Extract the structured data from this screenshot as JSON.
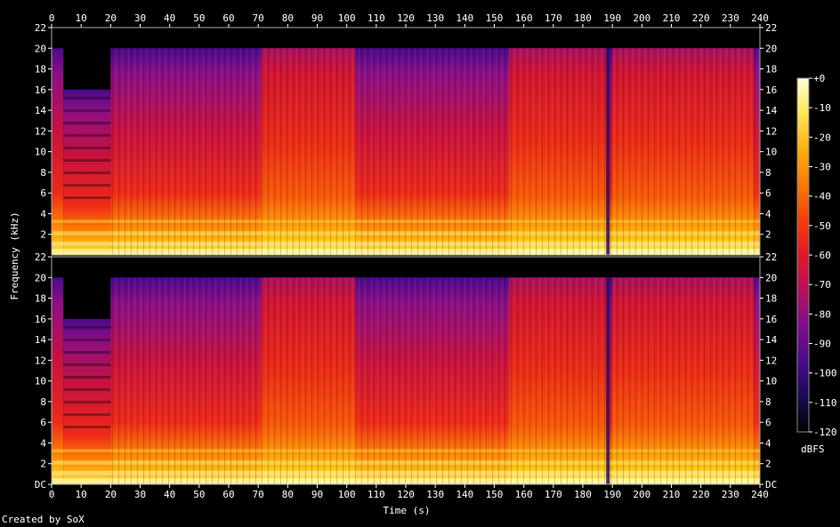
{
  "chart_data": {
    "type": "heatmap",
    "title": "",
    "xlabel": "Time (s)",
    "ylabel": "Frequency (kHz)",
    "xlim": [
      0,
      240
    ],
    "ylim": [
      0,
      22
    ],
    "x_ticks": [
      "0",
      "10",
      "20",
      "30",
      "40",
      "50",
      "60",
      "70",
      "80",
      "90",
      "100",
      "110",
      "120",
      "130",
      "140",
      "150",
      "160",
      "170",
      "180",
      "190",
      "200",
      "210",
      "220",
      "230",
      "240"
    ],
    "channels": [
      {
        "y_ticks": [
          "22",
          "20",
          "18",
          "16",
          "14",
          "12",
          "10",
          "8",
          "6",
          "4",
          "2"
        ],
        "cutoff_khz": 20,
        "intro_band_limit_khz": 16,
        "intro_end_s": 4,
        "transition_s": 20,
        "loud_segments": [
          [
            71,
            103
          ],
          [
            155,
            188
          ],
          [
            190,
            238
          ]
        ],
        "dip_s": 188.5,
        "end_s": 240
      },
      {
        "y_ticks": [
          "22",
          "20",
          "18",
          "16",
          "14",
          "12",
          "10",
          "8",
          "6",
          "4",
          "2",
          "DC"
        ],
        "cutoff_khz": 20,
        "intro_band_limit_khz": 16,
        "intro_end_s": 4,
        "transition_s": 20,
        "loud_segments": [
          [
            71,
            103
          ],
          [
            155,
            188
          ],
          [
            190,
            238
          ]
        ],
        "dip_s": 188.5,
        "end_s": 240
      }
    ],
    "colorbar": {
      "label": "dBFS",
      "ticks": [
        "+0",
        "-10",
        "-20",
        "-30",
        "-40",
        "-50",
        "-60",
        "-70",
        "-80",
        "-90",
        "-100",
        "-110",
        "-120"
      ],
      "range_db": [
        -120,
        0
      ],
      "colors": [
        "#000000",
        "#1b0a52",
        "#4a0a8c",
        "#7e0f8c",
        "#b5115c",
        "#e0182a",
        "#f43e0a",
        "#fb7a04",
        "#fdb00c",
        "#fee656",
        "#ffffd8"
      ]
    }
  },
  "footer": {
    "credit": "Created by SoX"
  }
}
